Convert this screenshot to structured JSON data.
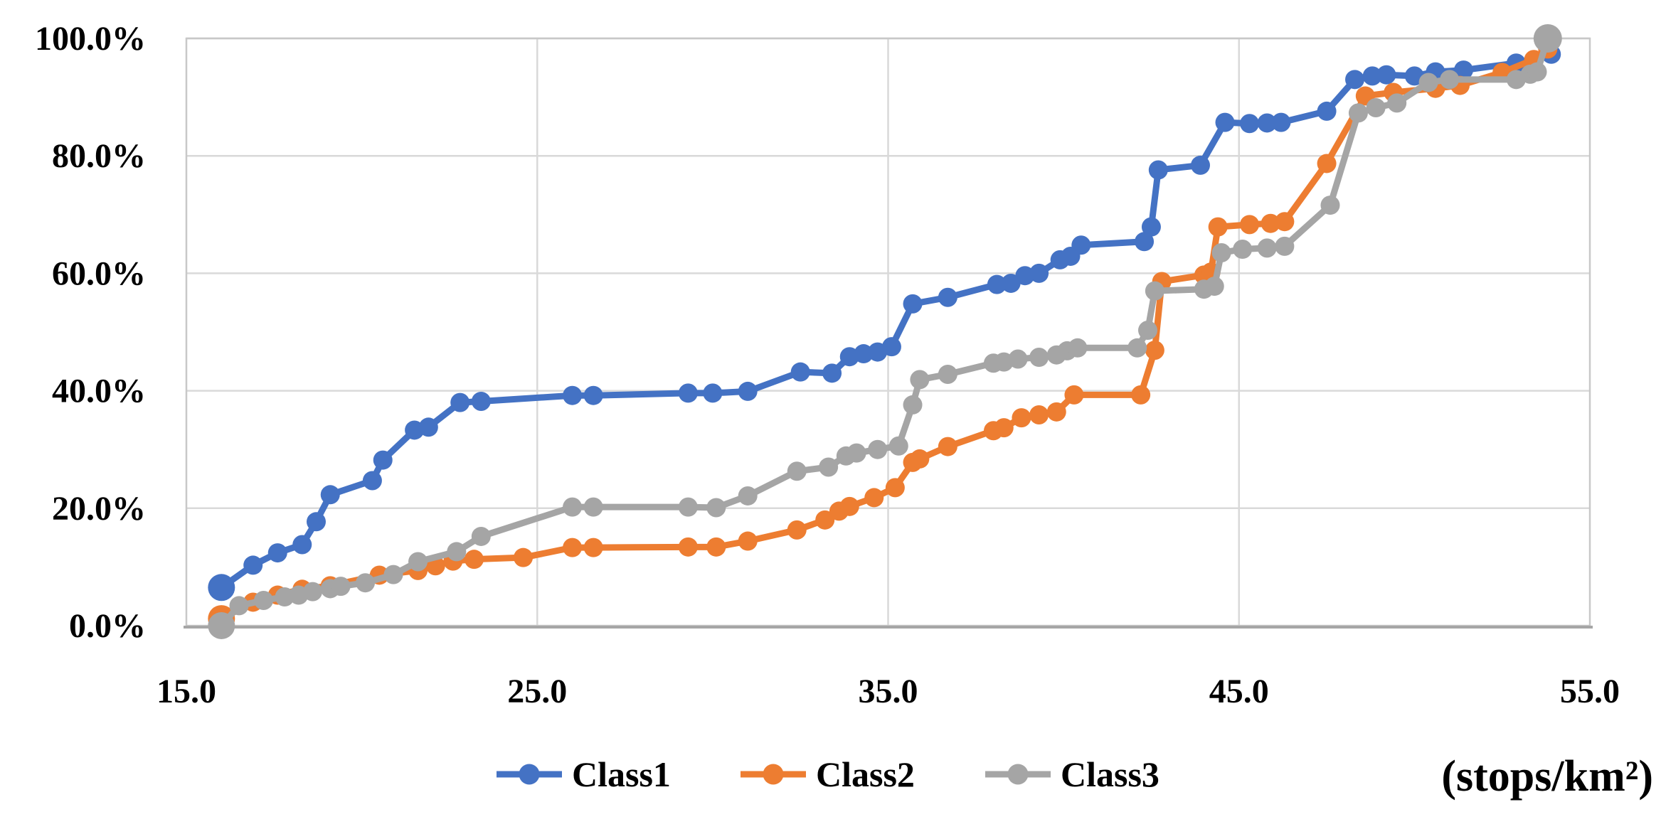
{
  "figure": {
    "background": "#ffffff",
    "unit_label": "(stops/km²)"
  },
  "chart_data": {
    "type": "line",
    "title": "",
    "xlabel": "(stops/km²)",
    "ylabel": "",
    "grid": true,
    "legend_position": "bottom-center",
    "x_axis": {
      "min": 15.0,
      "max": 55.0,
      "tick_interval": 10.0,
      "tick_values": [
        15.0,
        25.0,
        35.0,
        45.0,
        55.0
      ],
      "tick_labels": [
        "15.0",
        "25.0",
        "35.0",
        "45.0",
        "55.0"
      ]
    },
    "y_axis": {
      "min": 0,
      "max": 100,
      "tick_interval": 20,
      "tick_values": [
        0,
        20,
        40,
        60,
        80,
        100
      ],
      "tick_labels": [
        "0.0%",
        "20.0%",
        "40.0%",
        "60.0%",
        "80.0%",
        "100.0%"
      ]
    },
    "grid_color": "#D9D9D9",
    "border_color": "#C8C8C8",
    "axis_line_color": "#A6A6A6",
    "series": [
      {
        "name": "Class1",
        "color": "#4472C4",
        "marker_radius": 13.5,
        "first_marker_radius": 19,
        "last_marker_radius": 13.5,
        "points": [
          [
            16.0,
            6.5
          ],
          [
            16.9,
            10.3
          ],
          [
            17.6,
            12.4
          ],
          [
            18.3,
            13.8
          ],
          [
            18.7,
            17.7
          ],
          [
            19.1,
            22.3
          ],
          [
            20.3,
            24.7
          ],
          [
            20.6,
            28.2
          ],
          [
            21.5,
            33.3
          ],
          [
            21.9,
            33.8
          ],
          [
            22.8,
            38.0
          ],
          [
            23.4,
            38.2
          ],
          [
            26.0,
            39.2
          ],
          [
            26.6,
            39.2
          ],
          [
            29.3,
            39.6
          ],
          [
            30.0,
            39.6
          ],
          [
            31.0,
            39.9
          ],
          [
            32.5,
            43.2
          ],
          [
            33.4,
            43.0
          ],
          [
            33.9,
            45.8
          ],
          [
            34.3,
            46.3
          ],
          [
            34.7,
            46.6
          ],
          [
            35.1,
            47.5
          ],
          [
            35.7,
            54.8
          ],
          [
            36.7,
            55.9
          ],
          [
            38.1,
            58.1
          ],
          [
            38.5,
            58.3
          ],
          [
            38.9,
            59.6
          ],
          [
            39.3,
            60.0
          ],
          [
            39.9,
            62.3
          ],
          [
            40.2,
            62.9
          ],
          [
            40.5,
            64.8
          ],
          [
            42.3,
            65.4
          ],
          [
            42.5,
            67.9
          ],
          [
            42.7,
            77.6
          ],
          [
            43.9,
            78.4
          ],
          [
            44.6,
            85.7
          ],
          [
            45.3,
            85.5
          ],
          [
            45.8,
            85.6
          ],
          [
            46.2,
            85.7
          ],
          [
            47.5,
            87.6
          ],
          [
            48.3,
            93.0
          ],
          [
            48.8,
            93.6
          ],
          [
            49.2,
            93.8
          ],
          [
            50.0,
            93.6
          ],
          [
            50.6,
            94.3
          ],
          [
            51.4,
            94.6
          ],
          [
            52.9,
            95.8
          ],
          [
            53.9,
            97.3
          ]
        ]
      },
      {
        "name": "Class2",
        "color": "#ED7D31",
        "marker_radius": 13.5,
        "first_marker_radius": 19,
        "last_marker_radius": 13.5,
        "points": [
          [
            16.0,
            1.2
          ],
          [
            16.9,
            4.0
          ],
          [
            17.6,
            5.2
          ],
          [
            18.3,
            6.2
          ],
          [
            19.1,
            6.8
          ],
          [
            20.5,
            8.6
          ],
          [
            21.6,
            9.4
          ],
          [
            22.1,
            10.2
          ],
          [
            22.6,
            11.0
          ],
          [
            23.2,
            11.3
          ],
          [
            24.6,
            11.6
          ],
          [
            26.0,
            13.3
          ],
          [
            26.6,
            13.3
          ],
          [
            29.3,
            13.4
          ],
          [
            30.1,
            13.4
          ],
          [
            31.0,
            14.4
          ],
          [
            32.4,
            16.3
          ],
          [
            33.2,
            18.0
          ],
          [
            33.6,
            19.5
          ],
          [
            33.9,
            20.3
          ],
          [
            34.6,
            21.8
          ],
          [
            35.2,
            23.5
          ],
          [
            35.7,
            27.8
          ],
          [
            35.9,
            28.4
          ],
          [
            36.7,
            30.5
          ],
          [
            38.0,
            33.2
          ],
          [
            38.3,
            33.7
          ],
          [
            38.8,
            35.4
          ],
          [
            39.3,
            35.9
          ],
          [
            39.8,
            36.4
          ],
          [
            40.3,
            39.3
          ],
          [
            42.2,
            39.3
          ],
          [
            42.6,
            46.9
          ],
          [
            42.8,
            58.6
          ],
          [
            44.0,
            59.7
          ],
          [
            44.2,
            60.2
          ],
          [
            44.4,
            67.9
          ],
          [
            45.3,
            68.3
          ],
          [
            45.9,
            68.5
          ],
          [
            46.3,
            68.8
          ],
          [
            47.5,
            78.7
          ],
          [
            48.6,
            90.2
          ],
          [
            49.4,
            90.8
          ],
          [
            50.6,
            91.5
          ],
          [
            51.3,
            92.0
          ],
          [
            52.5,
            94.2
          ],
          [
            53.4,
            96.4
          ],
          [
            53.8,
            98.2
          ]
        ]
      },
      {
        "name": "Class3",
        "color": "#A5A5A5",
        "marker_radius": 13.5,
        "first_marker_radius": 19,
        "last_marker_radius": 20,
        "points": [
          [
            16.0,
            0.0
          ],
          [
            16.5,
            3.4
          ],
          [
            17.2,
            4.3
          ],
          [
            17.8,
            4.9
          ],
          [
            18.2,
            5.2
          ],
          [
            18.6,
            5.8
          ],
          [
            19.1,
            6.3
          ],
          [
            19.4,
            6.7
          ],
          [
            20.1,
            7.3
          ],
          [
            20.9,
            8.7
          ],
          [
            21.6,
            10.9
          ],
          [
            22.7,
            12.6
          ],
          [
            23.4,
            15.2
          ],
          [
            26.0,
            20.2
          ],
          [
            26.6,
            20.2
          ],
          [
            29.3,
            20.2
          ],
          [
            30.1,
            20.1
          ],
          [
            31.0,
            22.1
          ],
          [
            32.4,
            26.3
          ],
          [
            33.3,
            27.0
          ],
          [
            33.8,
            28.9
          ],
          [
            34.1,
            29.4
          ],
          [
            34.7,
            30.0
          ],
          [
            35.3,
            30.6
          ],
          [
            35.7,
            37.6
          ],
          [
            35.9,
            41.9
          ],
          [
            36.7,
            42.8
          ],
          [
            38.0,
            44.7
          ],
          [
            38.3,
            44.9
          ],
          [
            38.7,
            45.4
          ],
          [
            39.3,
            45.7
          ],
          [
            39.8,
            46.1
          ],
          [
            40.1,
            46.8
          ],
          [
            40.4,
            47.3
          ],
          [
            42.1,
            47.3
          ],
          [
            42.4,
            50.3
          ],
          [
            42.6,
            57.0
          ],
          [
            44.0,
            57.3
          ],
          [
            44.3,
            57.8
          ],
          [
            44.5,
            63.5
          ],
          [
            45.1,
            64.1
          ],
          [
            45.8,
            64.3
          ],
          [
            46.3,
            64.6
          ],
          [
            47.6,
            71.6
          ],
          [
            48.4,
            87.3
          ],
          [
            48.9,
            88.2
          ],
          [
            49.5,
            89.0
          ],
          [
            50.4,
            92.5
          ],
          [
            51.0,
            93.0
          ],
          [
            52.9,
            93.0
          ],
          [
            53.3,
            93.9
          ],
          [
            53.5,
            94.3
          ],
          [
            53.8,
            100.0
          ]
        ]
      }
    ]
  }
}
